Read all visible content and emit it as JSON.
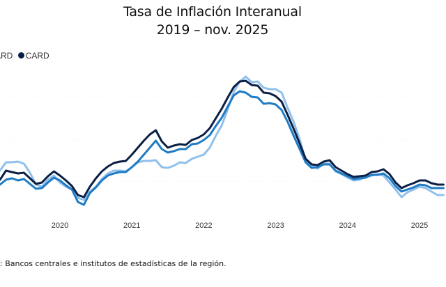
{
  "chart_data": {
    "type": "line",
    "title": "Tasa de Inflación Interanual",
    "subtitle": "2019 – nov. 2025",
    "xlabel": "",
    "ylabel": "",
    "x_start": "2019-09",
    "x_end": "2025-11",
    "x_frequency": "monthly",
    "x_ticks": [
      "2020",
      "2021",
      "2022",
      "2023",
      "2024",
      "2025"
    ],
    "y_axis_visible": false,
    "grid": "faint dotted horizontal",
    "legend": {
      "placement": "top-left",
      "items": [
        {
          "label": "ARD",
          "color": "#1f7bc4"
        },
        {
          "label": "CARD",
          "color": "#0b1f44"
        }
      ]
    },
    "series": [
      {
        "name": "CARD",
        "color": "#0b1f44",
        "values": [
          2.1,
          2.75,
          2.65,
          2.55,
          2.6,
          2.2,
          1.8,
          1.9,
          2.35,
          2.7,
          2.4,
          2.05,
          1.65,
          1.0,
          0.85,
          1.6,
          2.2,
          2.7,
          3.05,
          3.3,
          3.4,
          3.45,
          3.9,
          4.4,
          4.9,
          5.35,
          5.65,
          4.85,
          4.4,
          4.55,
          4.65,
          4.6,
          4.95,
          5.1,
          5.35,
          5.8,
          6.5,
          7.2,
          8.0,
          8.75,
          9.15,
          9.2,
          8.9,
          8.85,
          8.35,
          8.3,
          8.1,
          7.7,
          6.75,
          5.75,
          4.7,
          3.6,
          3.2,
          3.15,
          3.4,
          3.5,
          3.0,
          2.75,
          2.5,
          2.3,
          2.35,
          2.4,
          2.65,
          2.7,
          2.85,
          2.5,
          1.9,
          1.5,
          1.7,
          1.85,
          2.05,
          2.05,
          1.85,
          1.75,
          1.75
        ]
      },
      {
        "color": "#1f7bc4",
        "values": [
          1.75,
          2.1,
          2.2,
          2.05,
          2.15,
          1.8,
          1.45,
          1.5,
          1.9,
          2.25,
          2.05,
          1.7,
          1.4,
          0.5,
          0.3,
          1.15,
          1.55,
          2.05,
          2.4,
          2.55,
          2.65,
          2.65,
          3.0,
          3.4,
          3.9,
          4.4,
          4.9,
          4.3,
          4.05,
          4.15,
          4.3,
          4.3,
          4.65,
          4.7,
          4.95,
          5.3,
          5.95,
          6.55,
          7.35,
          8.15,
          8.45,
          8.35,
          8.05,
          8.0,
          7.55,
          7.6,
          7.5,
          7.1,
          6.25,
          5.25,
          4.3,
          3.35,
          2.95,
          3.0,
          3.2,
          3.2,
          2.75,
          2.55,
          2.35,
          2.15,
          2.2,
          2.25,
          2.45,
          2.45,
          2.55,
          2.2,
          1.65,
          1.25,
          1.4,
          1.55,
          1.75,
          1.7,
          1.5,
          1.5,
          1.5
        ]
      },
      {
        "color": "#8fc0ec",
        "values": [
          2.75,
          3.35,
          3.35,
          3.4,
          3.25,
          2.6,
          1.75,
          1.6,
          2.1,
          2.4,
          1.9,
          1.6,
          1.4,
          0.8,
          0.65,
          1.25,
          1.6,
          2.15,
          2.55,
          2.75,
          2.75,
          2.7,
          3.0,
          3.35,
          3.45,
          3.45,
          3.5,
          3.0,
          2.95,
          3.1,
          3.35,
          3.3,
          3.6,
          3.75,
          3.9,
          4.4,
          5.25,
          6.0,
          7.15,
          8.4,
          9.15,
          9.5,
          9.1,
          9.15,
          8.7,
          8.6,
          8.6,
          8.35,
          7.25,
          6.25,
          5.0,
          3.5,
          3.1,
          2.9,
          3.25,
          3.25,
          2.7,
          2.5,
          2.25,
          2.05,
          2.1,
          2.3,
          2.4,
          2.5,
          2.4,
          1.9,
          1.4,
          0.85,
          1.2,
          1.4,
          1.6,
          1.5,
          1.25,
          1.0,
          1.0
        ]
      }
    ]
  },
  "source": ": Bancos centrales e institutos de estadísticas de la región."
}
